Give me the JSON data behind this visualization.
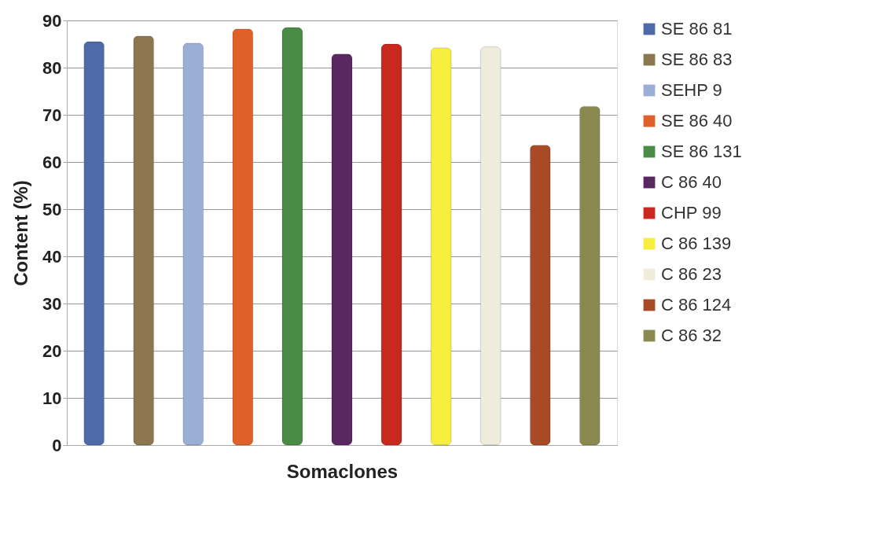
{
  "chart_data": {
    "type": "bar",
    "xlabel": "Somaclones",
    "ylabel": "Content (%)",
    "categories": [
      null,
      null,
      null,
      null,
      null,
      null,
      null,
      null,
      null,
      null,
      null
    ],
    "series": [
      {
        "name": "SE 86 81",
        "color": "#4f6aa8",
        "values": [
          85.5,
          null,
          null,
          null,
          null,
          null,
          null,
          null,
          null,
          null,
          null
        ]
      },
      {
        "name": "SE 86 83",
        "color": "#8c7650",
        "values": [
          null,
          86.7,
          null,
          null,
          null,
          null,
          null,
          null,
          null,
          null,
          null
        ]
      },
      {
        "name": "SEHP 9",
        "color": "#9aaed6",
        "values": [
          null,
          null,
          85.2,
          null,
          null,
          null,
          null,
          null,
          null,
          null,
          null
        ]
      },
      {
        "name": "SE 86 40",
        "color": "#e0602a",
        "values": [
          null,
          null,
          null,
          88.2,
          null,
          null,
          null,
          null,
          null,
          null,
          null
        ]
      },
      {
        "name": "SE 86 131",
        "color": "#4a8c45",
        "values": [
          null,
          null,
          null,
          null,
          88.5,
          null,
          null,
          null,
          null,
          null,
          null
        ]
      },
      {
        "name": "C 86 40",
        "color": "#5a2860",
        "values": [
          null,
          null,
          null,
          null,
          null,
          82.9,
          null,
          null,
          null,
          null,
          null
        ]
      },
      {
        "name": "CHP 99",
        "color": "#c8281e",
        "values": [
          null,
          null,
          null,
          null,
          null,
          null,
          85.0,
          null,
          null,
          null,
          null
        ]
      },
      {
        "name": "C 86 139",
        "color": "#f8ee40",
        "values": [
          null,
          null,
          null,
          null,
          null,
          null,
          null,
          84.2,
          null,
          null,
          null
        ]
      },
      {
        "name": "C 86 23",
        "color": "#f0ecdc",
        "values": [
          null,
          null,
          null,
          null,
          null,
          null,
          null,
          null,
          84.4,
          null,
          null
        ]
      },
      {
        "name": "C 86 124",
        "color": "#a84a26",
        "values": [
          null,
          null,
          null,
          null,
          null,
          null,
          null,
          null,
          null,
          63.6,
          null
        ]
      },
      {
        "name": "C 86 32",
        "color": "#8a8a50",
        "values": [
          null,
          null,
          null,
          null,
          null,
          null,
          null,
          null,
          null,
          null,
          71.8
        ]
      }
    ],
    "ylim": [
      0,
      90
    ],
    "yticks": [
      0,
      10,
      20,
      30,
      40,
      50,
      60,
      70,
      80,
      90
    ],
    "grid": "y",
    "legend": "right"
  }
}
